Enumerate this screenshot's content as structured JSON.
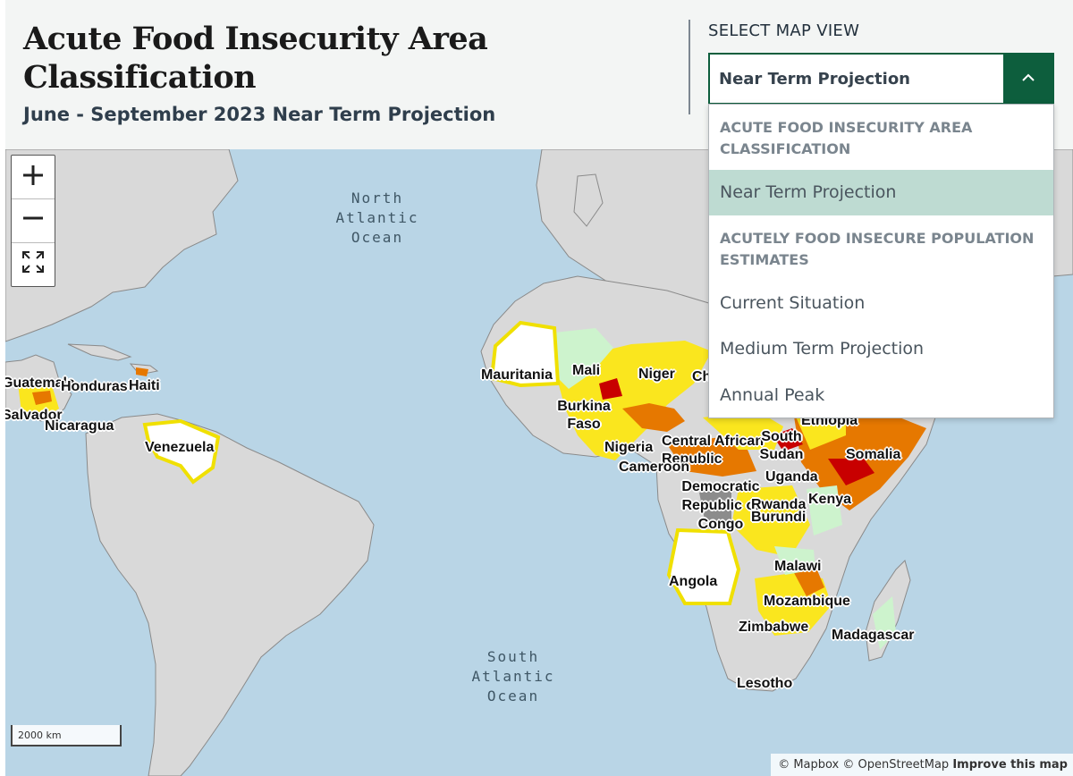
{
  "header": {
    "title": "Acute Food Insecurity Area Classification",
    "subtitle": "June - September 2023 Near Term Projection"
  },
  "select": {
    "label": "SELECT MAP VIEW",
    "value": "Near Term Projection",
    "groups": [
      {
        "heading": "ACUTE FOOD INSECURITY AREA CLASSIFICATION",
        "items": [
          "Near Term Projection"
        ]
      },
      {
        "heading": "ACUTELY FOOD INSECURE POPULATION ESTIMATES",
        "items": [
          "Current Situation",
          "Medium Term Projection",
          "Annual Peak"
        ]
      }
    ],
    "selected_item": "Near Term Projection"
  },
  "map": {
    "oceans": [
      "North Atlantic Ocean",
      "South Atlantic Ocean"
    ],
    "countries": [
      "Guatemala",
      "Honduras",
      "Haiti",
      "Salvador",
      "Nicaragua",
      "Venezuela",
      "Mauritania",
      "Mali",
      "Niger",
      "Ch",
      "Burkina Faso",
      "Nigeria",
      "Central African Republic",
      "Cameroon",
      "South Sudan",
      "Ethiopia",
      "Somalia",
      "Uganda",
      "Kenya",
      "Democratic Republic of Congo",
      "Rwanda",
      "Burundi",
      "Angola",
      "Malawi",
      "Mozambique",
      "Zimbabwe",
      "Madagascar",
      "Lesotho"
    ],
    "scale": "2000 km",
    "colors": {
      "ocean": "#b9d5e6",
      "land": "#d9d9d9",
      "minimal": "#cdf3cd",
      "stressed": "#fae61e",
      "crisis": "#e67800",
      "emergency": "#c80000",
      "no_data": "#8c8c8c"
    }
  },
  "zoom": {
    "in_icon": "plus-icon",
    "out_icon": "minus-icon",
    "fit_icon": "expand-icon"
  },
  "attribution": {
    "text": "© Mapbox © OpenStreetMap",
    "link": "Improve this map"
  }
}
